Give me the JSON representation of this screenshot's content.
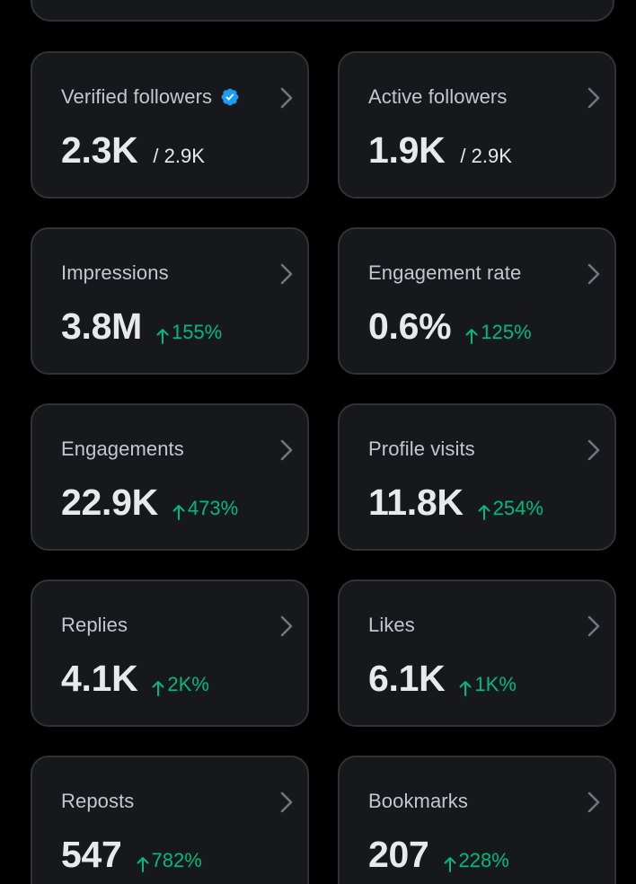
{
  "colors": {
    "background": "#000000",
    "card_background": "#16181c",
    "card_border": "#2f3336",
    "label_text": "#c4c8cc",
    "value_text": "#e7e9ea",
    "positive_change": "#00ba7c",
    "verified_badge": "#1d9bf0",
    "chevron": "#71767b"
  },
  "metrics": [
    {
      "label": "Verified followers",
      "value": "2.3K",
      "sub": "/ 2.9K",
      "verified": true
    },
    {
      "label": "Active followers",
      "value": "1.9K",
      "sub": "/ 2.9K"
    },
    {
      "label": "Impressions",
      "value": "3.8M",
      "change": "155%"
    },
    {
      "label": "Engagement rate",
      "value": "0.6%",
      "change": "125%"
    },
    {
      "label": "Engagements",
      "value": "22.9K",
      "change": "473%"
    },
    {
      "label": "Profile visits",
      "value": "11.8K",
      "change": "254%"
    },
    {
      "label": "Replies",
      "value": "4.1K",
      "change": "2K%"
    },
    {
      "label": "Likes",
      "value": "6.1K",
      "change": "1K%"
    },
    {
      "label": "Reposts",
      "value": "547",
      "change": "782%"
    },
    {
      "label": "Bookmarks",
      "value": "207",
      "change": "228%"
    }
  ]
}
